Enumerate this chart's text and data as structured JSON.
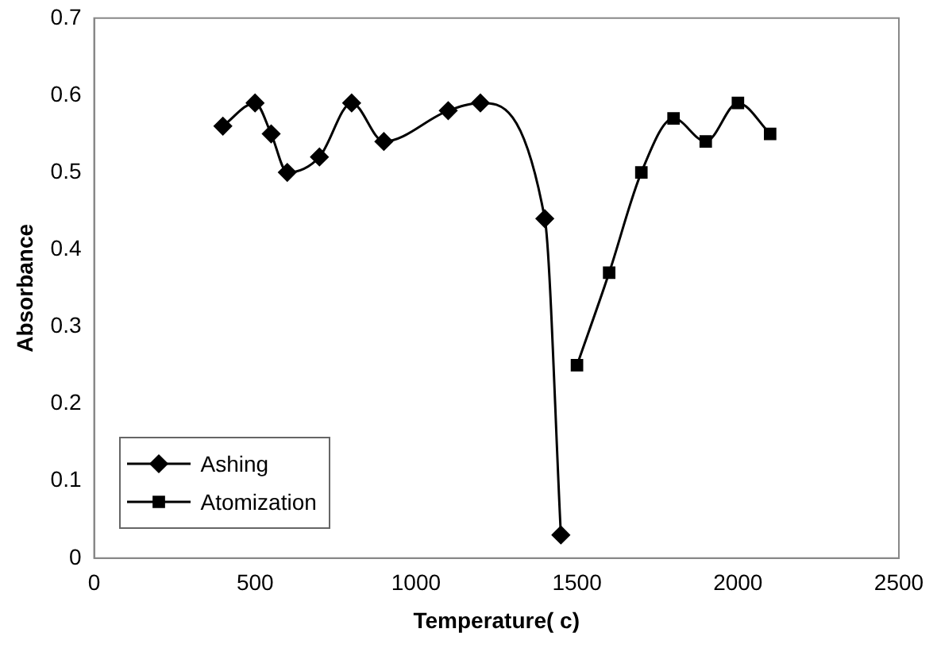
{
  "chart_data": {
    "type": "line",
    "xlabel": "Temperature( c)",
    "ylabel": "Absorbance",
    "xlim": [
      0,
      2500
    ],
    "xticks": [
      0,
      500,
      1000,
      1500,
      2000,
      2500
    ],
    "ylim": [
      0,
      0.7
    ],
    "yticks": [
      0,
      0.1,
      0.2,
      0.3,
      0.4,
      0.5,
      0.6,
      0.7
    ],
    "grid": false,
    "legend": "bottom left",
    "line_style": "solid",
    "series": [
      {
        "name": "Ashing",
        "color": "#000000",
        "marker": "diamond",
        "x": [
          400,
          500,
          550,
          600,
          700,
          800,
          900,
          1100,
          1200,
          1400,
          1450
        ],
        "values": [
          0.56,
          0.59,
          0.55,
          0.5,
          0.52,
          0.59,
          0.54,
          0.58,
          0.59,
          0.44,
          0.03
        ]
      },
      {
        "name": "Atomization",
        "color": "#000000",
        "marker": "square",
        "x": [
          1500,
          1600,
          1700,
          1800,
          1900,
          2000,
          2100
        ],
        "values": [
          0.25,
          0.37,
          0.5,
          0.57,
          0.54,
          0.59,
          0.55
        ]
      }
    ]
  }
}
